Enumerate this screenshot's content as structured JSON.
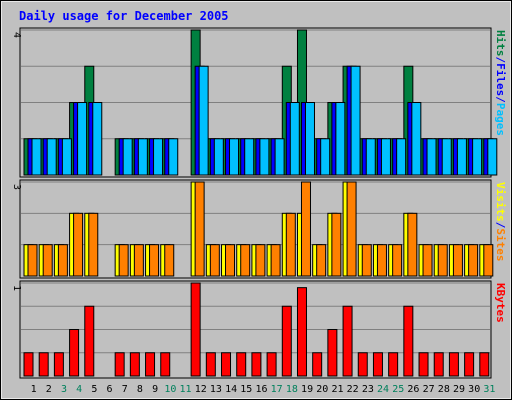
{
  "chart_data": {
    "type": "bar",
    "title": "Daily usage for December 2005",
    "days": [
      "1",
      "2",
      "3",
      "4",
      "5",
      "6",
      "7",
      "8",
      "9",
      "10",
      "11",
      "12",
      "13",
      "14",
      "15",
      "16",
      "17",
      "18",
      "19",
      "20",
      "21",
      "22",
      "23",
      "24",
      "25",
      "26",
      "27",
      "28",
      "29",
      "30",
      "31"
    ],
    "weekend_days": [
      3,
      4,
      10,
      11,
      17,
      18,
      24,
      25,
      31
    ],
    "panels": [
      {
        "id": "pages-files-hits",
        "max_label": "4",
        "ymax": 4,
        "legend": [
          {
            "text": "Pages",
            "color": "#00c0ff"
          },
          {
            "text": "/",
            "color": "#0000ff"
          },
          {
            "text": "Files",
            "color": "#0000ff"
          },
          {
            "text": "/",
            "color": "#0000ff"
          },
          {
            "text": "Hits",
            "color": "#008040"
          }
        ],
        "series": [
          {
            "name": "Hits",
            "color": "#008040",
            "values": [
              1,
              1,
              1,
              2,
              3,
              0,
              1,
              1,
              1,
              1,
              0,
              4,
              1,
              1,
              1,
              1,
              1,
              3,
              4,
              1,
              2,
              3,
              1,
              1,
              1,
              3,
              1,
              1,
              1,
              1,
              1
            ]
          },
          {
            "name": "Files",
            "color": "#0000ff",
            "values": [
              1,
              1,
              1,
              2,
              2,
              0,
              1,
              1,
              1,
              1,
              0,
              3,
              1,
              1,
              1,
              1,
              1,
              2,
              2,
              1,
              2,
              3,
              1,
              1,
              1,
              2,
              1,
              1,
              1,
              1,
              1
            ]
          },
          {
            "name": "Pages",
            "color": "#00c0ff",
            "values": [
              1,
              1,
              1,
              2,
              2,
              0,
              1,
              1,
              1,
              1,
              0,
              3,
              1,
              1,
              1,
              1,
              1,
              2,
              2,
              1,
              2,
              3,
              1,
              1,
              1,
              2,
              1,
              1,
              1,
              1,
              1
            ]
          }
        ]
      },
      {
        "id": "sites-visits",
        "max_label": "3",
        "ymax": 3,
        "legend": [
          {
            "text": "Sites",
            "color": "#ff8000"
          },
          {
            "text": "/",
            "color": "#0000ff"
          },
          {
            "text": "Visits",
            "color": "#ffff00"
          }
        ],
        "series": [
          {
            "name": "Visits",
            "color": "#ffff00",
            "values": [
              1,
              1,
              1,
              2,
              2,
              0,
              1,
              1,
              1,
              1,
              0,
              3,
              1,
              1,
              1,
              1,
              1,
              2,
              2,
              1,
              2,
              3,
              1,
              1,
              1,
              2,
              1,
              1,
              1,
              1,
              1
            ]
          },
          {
            "name": "Sites",
            "color": "#ff8000",
            "values": [
              1,
              1,
              1,
              2,
              2,
              0,
              1,
              1,
              1,
              1,
              0,
              3,
              1,
              1,
              1,
              1,
              1,
              2,
              3,
              1,
              2,
              3,
              1,
              1,
              1,
              2,
              1,
              1,
              1,
              1,
              1
            ]
          }
        ]
      },
      {
        "id": "kbytes",
        "max_label": "1",
        "ymax": 1,
        "legend": [
          {
            "text": "KBytes",
            "color": "#ff0000"
          }
        ],
        "series": [
          {
            "name": "KBytes",
            "color": "#ff0000",
            "values": [
              0.25,
              0.25,
              0.25,
              0.5,
              0.75,
              0,
              0.25,
              0.25,
              0.25,
              0.25,
              0,
              1,
              0.25,
              0.25,
              0.25,
              0.25,
              0.25,
              0.75,
              0.95,
              0.25,
              0.5,
              0.75,
              0.25,
              0.25,
              0.25,
              0.75,
              0.25,
              0.25,
              0.25,
              0.25,
              0.25
            ]
          }
        ]
      }
    ],
    "colors": {
      "background": "#c0c0c0",
      "plot": "#c0c0c0",
      "grid": "#808080",
      "title": "#0000ff",
      "day_label": "#000000",
      "weekend_label": "#00805c"
    }
  }
}
